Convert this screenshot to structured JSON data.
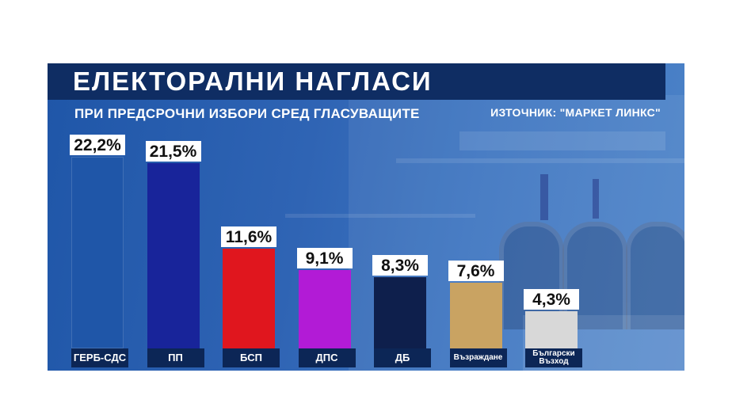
{
  "header": {
    "title": "ЕЛЕКТОРАЛНИ НАГЛАСИ",
    "subtitle": "ПРИ ПРЕДСРОЧНИ ИЗБОРИ СРЕД ГЛАСУВАЩИТЕ",
    "source": "ИЗТОЧНИК: \"МАРКЕТ ЛИНКС\""
  },
  "chart_data": {
    "type": "bar",
    "title": "ЕЛЕКТОРАЛНИ НАГЛАСИ",
    "subtitle": "ПРИ ПРЕДСРОЧНИ ИЗБОРИ СРЕД ГЛАСУВАЩИТЕ",
    "categories": [
      "ГЕРБ-СДС",
      "ПП",
      "БСП",
      "ДПС",
      "ДБ",
      "Възраждане",
      "Български Възход"
    ],
    "values": [
      22.2,
      21.5,
      11.6,
      9.1,
      8.3,
      7.6,
      4.3
    ],
    "value_labels": [
      "22,2%",
      "21,5%",
      "11,6%",
      "9,1%",
      "8,3%",
      "7,6%",
      "4,3%"
    ],
    "category_labels": [
      "ГЕРБ-СДС",
      "ПП",
      "БСП",
      "ДПС",
      "ДБ",
      "Възраждане",
      "Български\nВъзход"
    ],
    "colors": [
      "#1f56a8",
      "#18249a",
      "#e0161e",
      "#b21bd6",
      "#0e1f4c",
      "#c9a362",
      "#d8d8d8"
    ],
    "unit": "%",
    "ylim": [
      0,
      25
    ],
    "grid": false,
    "legend": "none"
  }
}
